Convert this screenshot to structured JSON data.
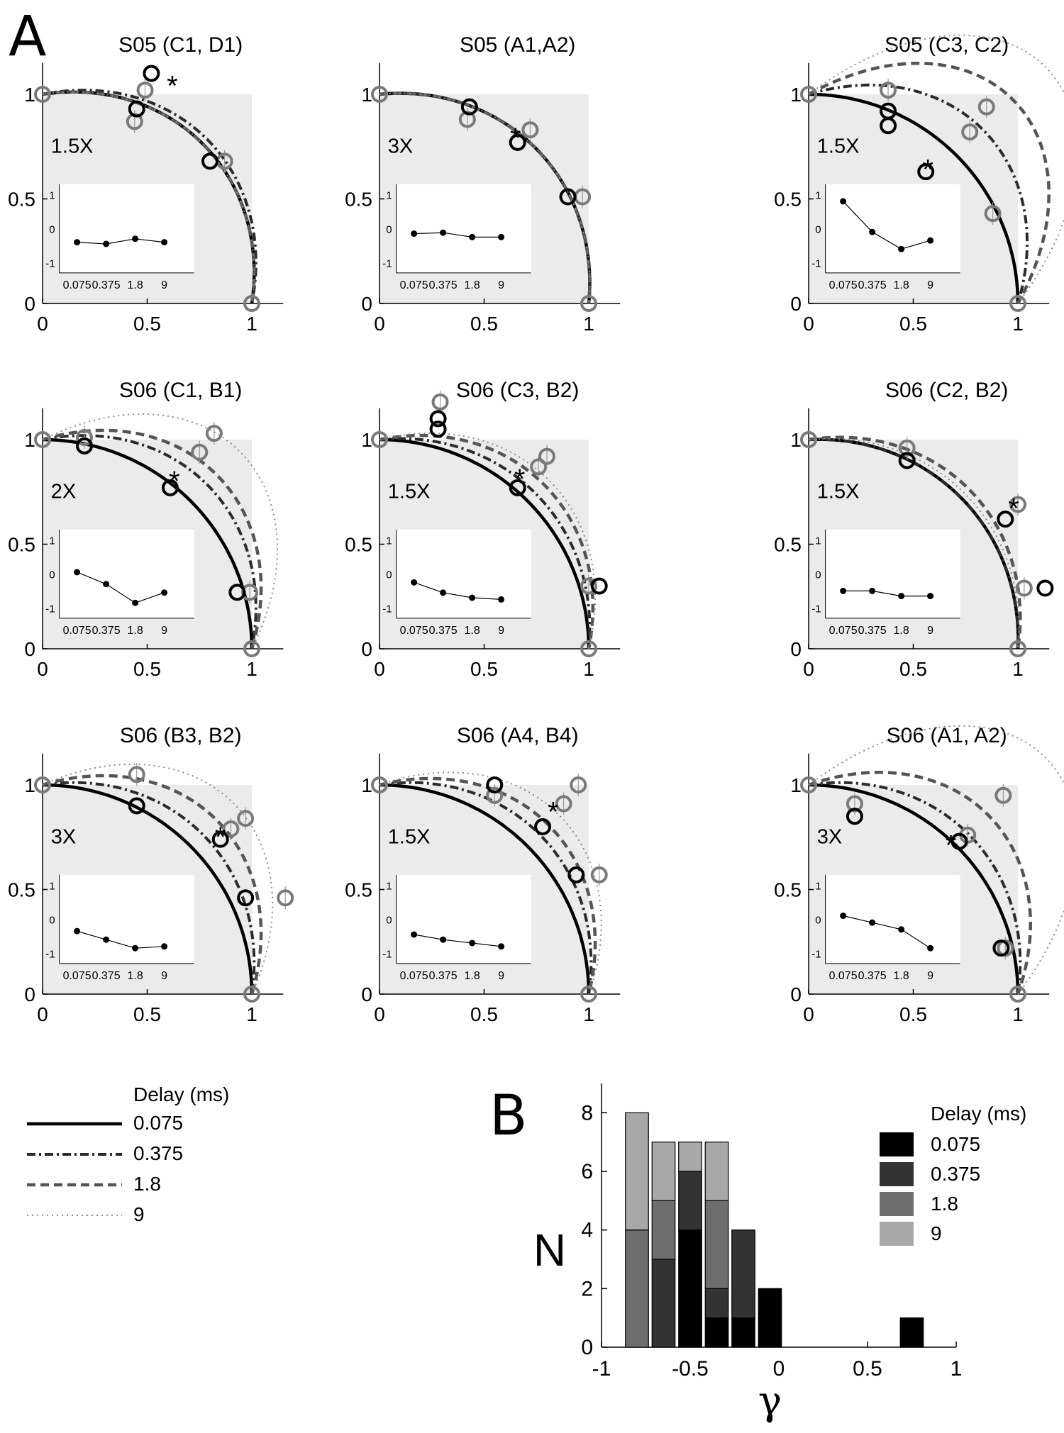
{
  "panel_labels": {
    "a": "A",
    "b": "B"
  },
  "panel_a": {
    "axis": {
      "xlim": [
        0,
        1.15
      ],
      "ylim": [
        0,
        1.15
      ],
      "xticks": [
        "0",
        "0.5",
        "1"
      ],
      "yticks": [
        "0",
        "0.5",
        "1"
      ]
    },
    "inset": {
      "xticks": [
        "0.075",
        "0.375",
        "1.8",
        "9"
      ],
      "yticks": [
        "1",
        "0",
        "-1"
      ],
      "ylim": [
        -1.3,
        1.3
      ]
    },
    "legend": {
      "title": "Delay (ms)",
      "items": [
        {
          "label": "0.075",
          "style": "solid"
        },
        {
          "label": "0.375",
          "style": "dashdot"
        },
        {
          "label": "1.8",
          "style": "dashed"
        },
        {
          "label": "9",
          "style": "dotted"
        }
      ]
    },
    "colors": {
      "d0": "#000000",
      "d1": "#2b2b2b",
      "d2": "#555555",
      "d3": "#8a8a8a",
      "marker_gray": "#7a7a7a",
      "box": "#ebebeb"
    }
  },
  "chart_data": [
    {
      "type": "scatter",
      "title": "S05 (C1, D1)",
      "factor": "1.5X",
      "gammas": [
        -0.15,
        -0.2,
        -0.15,
        -0.15
      ],
      "asterisk": [
        0.62,
        1.05
      ],
      "black_points": [
        [
          0.52,
          1.1
        ],
        [
          0.45,
          0.93
        ],
        [
          0.8,
          0.68
        ]
      ],
      "gray_points": [
        [
          0.49,
          1.02
        ],
        [
          0.44,
          0.87
        ],
        [
          0.87,
          0.68
        ]
      ],
      "inset_values": [
        -0.4,
        -0.45,
        -0.3,
        -0.4
      ]
    },
    {
      "type": "scatter",
      "title": "S05 (A1,A2)",
      "factor": "3X",
      "gammas": [
        -0.1,
        -0.1,
        -0.1,
        -0.1
      ],
      "asterisk": [
        0.65,
        0.8
      ],
      "black_points": [
        [
          0.43,
          0.94
        ],
        [
          0.66,
          0.77
        ],
        [
          0.9,
          0.51
        ]
      ],
      "gray_points": [
        [
          0.42,
          0.88
        ],
        [
          0.72,
          0.83
        ],
        [
          0.97,
          0.51
        ]
      ],
      "inset_values": [
        -0.15,
        -0.12,
        -0.25,
        -0.25
      ]
    },
    {
      "type": "scatter",
      "title": "S05 (C3, C2)",
      "factor": "1.5X",
      "gammas": [
        0.0,
        -0.3,
        -0.55,
        -0.75
      ],
      "asterisk": [
        0.57,
        0.65
      ],
      "black_points": [
        [
          0.38,
          0.92
        ],
        [
          0.38,
          0.85
        ],
        [
          0.56,
          0.63
        ],
        [
          0.67,
          0.43
        ]
      ],
      "gray_points": [
        [
          0.38,
          1.02
        ],
        [
          0.77,
          0.82
        ],
        [
          0.85,
          0.94
        ],
        [
          0.88,
          0.43
        ]
      ],
      "inset_values": [
        0.8,
        -0.1,
        -0.6,
        -0.35
      ]
    },
    {
      "type": "scatter",
      "title": "S06 (C1, B1)",
      "factor": "2X",
      "gammas": [
        0.0,
        -0.2,
        -0.3,
        -0.5
      ],
      "asterisk": [
        0.63,
        0.81
      ],
      "black_points": [
        [
          0.2,
          0.97
        ],
        [
          0.61,
          0.77
        ],
        [
          0.93,
          0.27
        ]
      ],
      "gray_points": [
        [
          0.2,
          1.01
        ],
        [
          0.75,
          0.94
        ],
        [
          0.82,
          1.03
        ],
        [
          0.99,
          0.27
        ]
      ],
      "inset_values": [
        0.05,
        -0.3,
        -0.85,
        -0.55
      ]
    },
    {
      "type": "scatter",
      "title": "S06 (C3, B2)",
      "factor": "1.5X",
      "gammas": [
        0.0,
        -0.1,
        -0.2,
        -0.25
      ],
      "asterisk": [
        0.67,
        0.82
      ],
      "black_points": [
        [
          0.28,
          1.05
        ],
        [
          0.28,
          1.1
        ],
        [
          0.66,
          0.77
        ],
        [
          1.05,
          0.3
        ]
      ],
      "gray_points": [
        [
          0.29,
          1.18
        ],
        [
          0.76,
          0.87
        ],
        [
          0.8,
          0.92
        ],
        [
          1.0,
          0.3
        ]
      ],
      "inset_values": [
        -0.25,
        -0.55,
        -0.7,
        -0.75
      ]
    },
    {
      "type": "scatter",
      "title": "S06 (C2, B2)",
      "factor": "1.5X",
      "gammas": [
        -0.05,
        -0.05,
        -0.15,
        -0.1
      ],
      "asterisk": [
        0.98,
        0.68
      ],
      "black_points": [
        [
          0.47,
          0.9
        ],
        [
          0.94,
          0.62
        ],
        [
          1.13,
          0.29
        ]
      ],
      "gray_points": [
        [
          0.47,
          0.96
        ],
        [
          1.0,
          0.69
        ],
        [
          1.03,
          0.29
        ]
      ],
      "inset_values": [
        -0.5,
        -0.5,
        -0.65,
        -0.65
      ]
    },
    {
      "type": "scatter",
      "title": "S06 (B3, B2)",
      "factor": "3X",
      "gammas": [
        0.0,
        -0.15,
        -0.3,
        -0.45
      ],
      "asterisk": [
        0.85,
        0.76
      ],
      "black_points": [
        [
          0.45,
          0.9
        ],
        [
          0.85,
          0.74
        ],
        [
          0.97,
          0.46
        ]
      ],
      "gray_points": [
        [
          0.45,
          1.05
        ],
        [
          0.9,
          0.79
        ],
        [
          0.97,
          0.84
        ],
        [
          1.16,
          0.46
        ]
      ],
      "inset_values": [
        -0.35,
        -0.6,
        -0.85,
        -0.8
      ]
    },
    {
      "type": "scatter",
      "title": "S06 (A4, B4)",
      "factor": "1.5X",
      "gammas": [
        0.0,
        -0.15,
        -0.25,
        -0.35
      ],
      "asterisk": [
        0.83,
        0.88
      ],
      "black_points": [
        [
          0.55,
          1.0
        ],
        [
          0.78,
          0.8
        ],
        [
          0.94,
          0.57
        ]
      ],
      "gray_points": [
        [
          0.55,
          0.95
        ],
        [
          0.88,
          0.91
        ],
        [
          0.95,
          1.0
        ],
        [
          1.05,
          0.57
        ]
      ],
      "inset_values": [
        -0.45,
        -0.6,
        -0.7,
        -0.8
      ]
    },
    {
      "type": "scatter",
      "title": "S06 (A1, A2)",
      "factor": "3X",
      "gammas": [
        0.0,
        -0.15,
        -0.35,
        -0.75
      ],
      "asterisk": [
        0.68,
        0.72
      ],
      "black_points": [
        [
          0.22,
          0.85
        ],
        [
          0.72,
          0.73
        ],
        [
          0.92,
          0.22
        ]
      ],
      "gray_points": [
        [
          0.22,
          0.91
        ],
        [
          0.76,
          0.76
        ],
        [
          0.93,
          0.95
        ],
        [
          0.94,
          0.22
        ]
      ],
      "inset_values": [
        0.1,
        -0.1,
        -0.3,
        -0.85
      ]
    },
    {
      "type": "bar",
      "stacked": true,
      "xlabel": "γ",
      "ylabel": "N",
      "xlim": [
        -1,
        1
      ],
      "ylim": [
        0,
        9
      ],
      "xticks": [
        "-1",
        "-0.5",
        "0",
        "0.5",
        "1"
      ],
      "yticks": [
        "0",
        "2",
        "4",
        "6",
        "8"
      ],
      "bin_centers": [
        -0.8,
        -0.65,
        -0.5,
        -0.35,
        -0.2,
        -0.05,
        0.1,
        0.25,
        0.4,
        0.55,
        0.75
      ],
      "series": [
        {
          "name": "0.075",
          "values": [
            0,
            0,
            4,
            1,
            1,
            2,
            0,
            0,
            0,
            0,
            1
          ]
        },
        {
          "name": "0.375",
          "values": [
            0,
            3,
            2,
            1,
            3,
            0,
            0,
            0,
            0,
            0,
            0
          ]
        },
        {
          "name": "1.8",
          "values": [
            4,
            2,
            0,
            3,
            0,
            0,
            0,
            0,
            0,
            0,
            0
          ]
        },
        {
          "name": "9",
          "values": [
            4,
            2,
            1,
            2,
            0,
            0,
            0,
            0,
            0,
            0,
            0
          ]
        }
      ],
      "legend_title": "Delay (ms)",
      "legend_items": [
        "0.075",
        "0.375",
        "1.8",
        "9"
      ]
    }
  ]
}
